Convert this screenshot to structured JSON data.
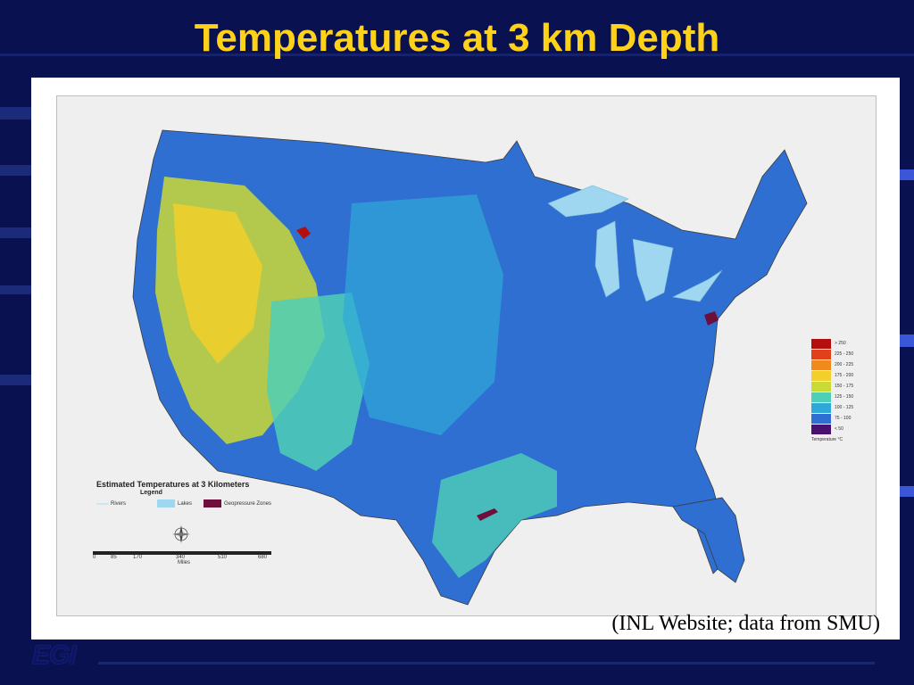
{
  "slide": {
    "title": "Temperatures at 3 km Depth",
    "caption": "(INL Website; data from SMU)",
    "logo_text": "EGI",
    "colors": {
      "background": "#0a1150",
      "title": "#ffd21a"
    }
  },
  "map": {
    "title": "Estimated Temperatures at 3 Kilometers",
    "legend_heading": "Legend",
    "legend_items": [
      {
        "label": "Rivers",
        "color": "#bfe4f5"
      },
      {
        "label": "Lakes",
        "color": "#9fd6f0"
      },
      {
        "label": "Geopressure Zones",
        "color": "#6d0f3a"
      }
    ],
    "scale_label": "Miles",
    "scale_ticks": [
      "0",
      "85",
      "170",
      "340",
      "510",
      "680"
    ],
    "temperature_legend": {
      "unit": "Temperature °C",
      "classes": [
        {
          "label": "> 250",
          "color": "#b30f0f"
        },
        {
          "label": "225 - 250",
          "color": "#e0401a"
        },
        {
          "label": "200 - 225",
          "color": "#f08a1c"
        },
        {
          "label": "175 - 200",
          "color": "#f2cf2a"
        },
        {
          "label": "150 - 175",
          "color": "#c9d936"
        },
        {
          "label": "125 - 150",
          "color": "#4fcfb7"
        },
        {
          "label": "100 - 125",
          "color": "#2fa8d8"
        },
        {
          "label": "75 - 100",
          "color": "#2f6fd1"
        },
        {
          "label": "< 50",
          "color": "#4a1070"
        }
      ]
    }
  }
}
